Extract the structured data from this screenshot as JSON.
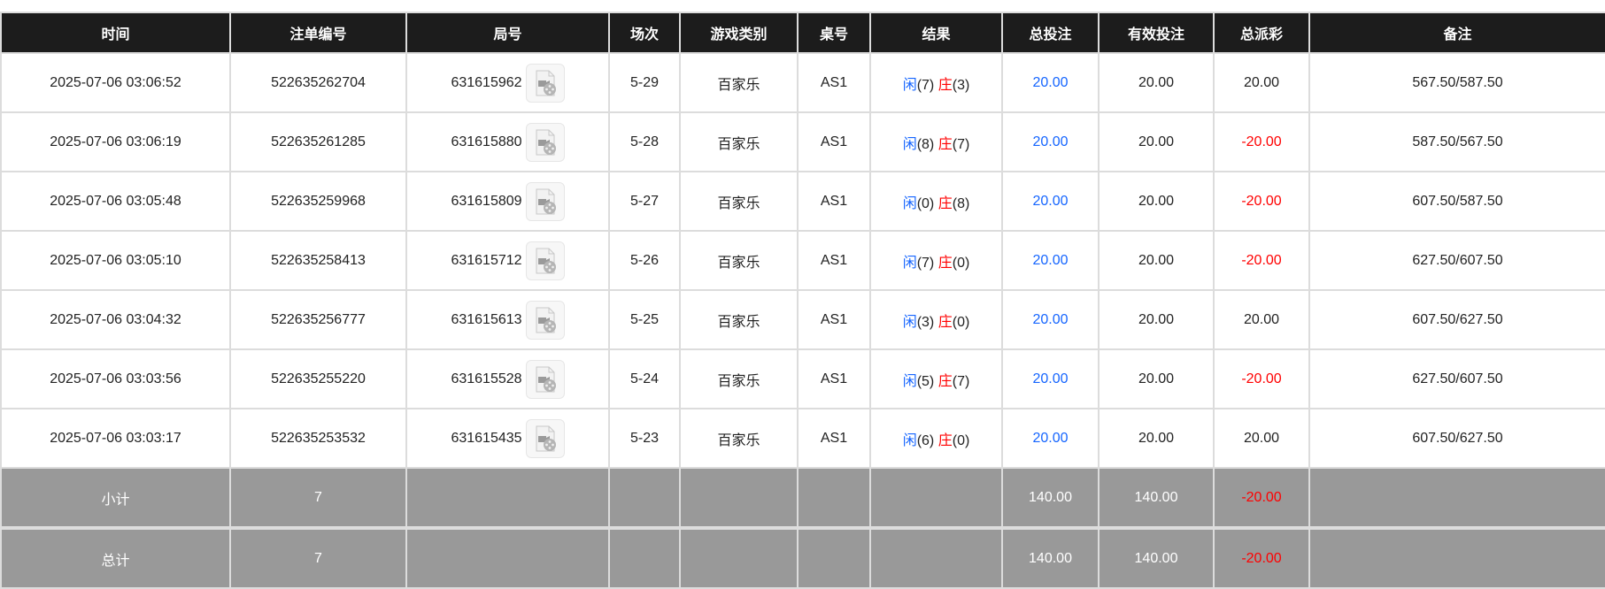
{
  "headers": [
    "时间",
    "注单编号",
    "局号",
    "场次",
    "游戏类别",
    "桌号",
    "结果",
    "总投注",
    "有效投注",
    "总派彩",
    "备注"
  ],
  "colors": {
    "header_bg": "#1c1c1c",
    "footer_bg": "#999999",
    "blue": "#1565ff",
    "red": "#ff0000"
  },
  "rows": [
    {
      "time": "2025-07-06 03:06:52",
      "bet_id": "522635262704",
      "round": "631615962",
      "shoe": "5-29",
      "game": "百家乐",
      "table": "AS1",
      "player_label": "闲",
      "player": "(7)",
      "banker_label": "庄",
      "banker": "(3)",
      "total_bet": "20.00",
      "valid_bet": "20.00",
      "payout": "20.00",
      "payout_negative": false,
      "note": "567.50/587.50"
    },
    {
      "time": "2025-07-06 03:06:19",
      "bet_id": "522635261285",
      "round": "631615880",
      "shoe": "5-28",
      "game": "百家乐",
      "table": "AS1",
      "player_label": "闲",
      "player": "(8)",
      "banker_label": "庄",
      "banker": "(7)",
      "total_bet": "20.00",
      "valid_bet": "20.00",
      "payout": "-20.00",
      "payout_negative": true,
      "note": "587.50/567.50"
    },
    {
      "time": "2025-07-06 03:05:48",
      "bet_id": "522635259968",
      "round": "631615809",
      "shoe": "5-27",
      "game": "百家乐",
      "table": "AS1",
      "player_label": "闲",
      "player": "(0)",
      "banker_label": "庄",
      "banker": "(8)",
      "total_bet": "20.00",
      "valid_bet": "20.00",
      "payout": "-20.00",
      "payout_negative": true,
      "note": "607.50/587.50"
    },
    {
      "time": "2025-07-06 03:05:10",
      "bet_id": "522635258413",
      "round": "631615712",
      "shoe": "5-26",
      "game": "百家乐",
      "table": "AS1",
      "player_label": "闲",
      "player": "(7)",
      "banker_label": "庄",
      "banker": "(0)",
      "total_bet": "20.00",
      "valid_bet": "20.00",
      "payout": "-20.00",
      "payout_negative": true,
      "note": "627.50/607.50"
    },
    {
      "time": "2025-07-06 03:04:32",
      "bet_id": "522635256777",
      "round": "631615613",
      "shoe": "5-25",
      "game": "百家乐",
      "table": "AS1",
      "player_label": "闲",
      "player": "(3)",
      "banker_label": "庄",
      "banker": "(0)",
      "total_bet": "20.00",
      "valid_bet": "20.00",
      "payout": "20.00",
      "payout_negative": false,
      "note": "607.50/627.50"
    },
    {
      "time": "2025-07-06 03:03:56",
      "bet_id": "522635255220",
      "round": "631615528",
      "shoe": "5-24",
      "game": "百家乐",
      "table": "AS1",
      "player_label": "闲",
      "player": "(5)",
      "banker_label": "庄",
      "banker": "(7)",
      "total_bet": "20.00",
      "valid_bet": "20.00",
      "payout": "-20.00",
      "payout_negative": true,
      "note": "627.50/607.50"
    },
    {
      "time": "2025-07-06 03:03:17",
      "bet_id": "522635253532",
      "round": "631615435",
      "shoe": "5-23",
      "game": "百家乐",
      "table": "AS1",
      "player_label": "闲",
      "player": "(6)",
      "banker_label": "庄",
      "banker": "(0)",
      "total_bet": "20.00",
      "valid_bet": "20.00",
      "payout": "20.00",
      "payout_negative": false,
      "note": "607.50/627.50"
    }
  ],
  "video_icon": "video-file-icon",
  "subtotal": {
    "label": "小计",
    "count": "7",
    "total_bet": "140.00",
    "valid_bet": "140.00",
    "payout": "-20.00"
  },
  "total": {
    "label": "总计",
    "count": "7",
    "total_bet": "140.00",
    "valid_bet": "140.00",
    "payout": "-20.00"
  }
}
